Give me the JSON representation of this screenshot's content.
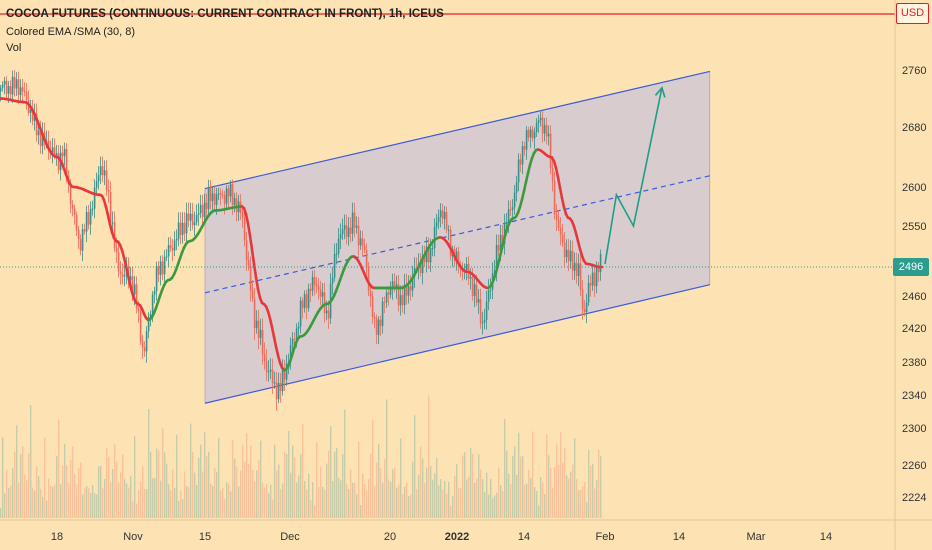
{
  "header": {
    "title": "COCOA FUTURES (CONTINUOUS: CURRENT CONTRACT IN FRONT), 1h, ICEUS",
    "indicator": "Colored EMA /SMA (30, 8)",
    "volume": "Vol"
  },
  "currency_button": "USD",
  "last_price_label": "2496",
  "colors": {
    "background": "#fde3b4",
    "candle_up": "#3a8f8a",
    "candle_down": "#ee6a5a",
    "ema_up": "#3c9a3e",
    "ema_down": "#e8373a",
    "channel_line": "#3b5bdb",
    "channel_fill": "#c8c2d8",
    "forecast_arrow": "#1f9e86",
    "alert_line": "#e02020",
    "price_badge": "#2a9d8f"
  },
  "chart_data": {
    "type": "candlestick",
    "interval": "1h",
    "grid": false,
    "x_tick_labels": [
      "18",
      "Nov",
      "15",
      "Dec",
      "20",
      "2022",
      "14",
      "Feb",
      "14",
      "Mar",
      "14"
    ],
    "y_tick_labels": [
      "2760",
      "2680",
      "2600",
      "2550",
      "2496",
      "2460",
      "2420",
      "2380",
      "2340",
      "2300",
      "2260",
      "2224"
    ],
    "last_price": 2496,
    "price_path": [
      {
        "t": "Oct 11",
        "close": 2730
      },
      {
        "t": "Oct 13",
        "close": 2745
      },
      {
        "t": "Oct 15",
        "close": 2690
      },
      {
        "t": "Oct 18",
        "close": 2630
      },
      {
        "t": "Oct 19",
        "close": 2655
      },
      {
        "t": "Oct 21",
        "close": 2560
      },
      {
        "t": "Oct 22",
        "close": 2520
      },
      {
        "t": "Oct 25",
        "close": 2600
      },
      {
        "t": "Oct 26",
        "close": 2630
      },
      {
        "t": "Oct 28",
        "close": 2560
      },
      {
        "t": "Oct 29",
        "close": 2500
      },
      {
        "t": "Nov 1",
        "close": 2470
      },
      {
        "t": "Nov 2",
        "close": 2430
      },
      {
        "t": "Nov 3",
        "close": 2395
      },
      {
        "t": "Nov 5",
        "close": 2470
      },
      {
        "t": "Nov 8",
        "close": 2525
      },
      {
        "t": "Nov 10",
        "close": 2540
      },
      {
        "t": "Nov 12",
        "close": 2560
      },
      {
        "t": "Nov 15",
        "close": 2575
      },
      {
        "t": "Nov 17",
        "close": 2590
      },
      {
        "t": "Nov 19",
        "close": 2595
      },
      {
        "t": "Nov 22",
        "close": 2560
      },
      {
        "t": "Nov 24",
        "close": 2440
      },
      {
        "t": "Nov 26",
        "close": 2380
      },
      {
        "t": "Nov 29",
        "close": 2345
      },
      {
        "t": "Dec 1",
        "close": 2390
      },
      {
        "t": "Dec 3",
        "close": 2450
      },
      {
        "t": "Dec 6",
        "close": 2475
      },
      {
        "t": "Dec 8",
        "close": 2440
      },
      {
        "t": "Dec 10",
        "close": 2530
      },
      {
        "t": "Dec 13",
        "close": 2560
      },
      {
        "t": "Dec 15",
        "close": 2510
      },
      {
        "t": "Dec 17",
        "close": 2420
      },
      {
        "t": "Dec 20",
        "close": 2470
      },
      {
        "t": "Dec 22",
        "close": 2460
      },
      {
        "t": "Dec 24",
        "close": 2480
      },
      {
        "t": "Dec 27",
        "close": 2520
      },
      {
        "t": "Dec 29",
        "close": 2570
      },
      {
        "t": "Dec 31",
        "close": 2520
      },
      {
        "t": "Jan 4",
        "close": 2470
      },
      {
        "t": "Jan 6",
        "close": 2430
      },
      {
        "t": "Jan 10",
        "close": 2550
      },
      {
        "t": "Jan 12",
        "close": 2590
      },
      {
        "t": "Jan 14",
        "close": 2660
      },
      {
        "t": "Jan 17",
        "close": 2690
      },
      {
        "t": "Jan 19",
        "close": 2670
      },
      {
        "t": "Jan 21",
        "close": 2560
      },
      {
        "t": "Jan 24",
        "close": 2500
      },
      {
        "t": "Jan 26",
        "close": 2490
      },
      {
        "t": "Jan 27",
        "close": 2440
      },
      {
        "t": "Jan 28",
        "close": 2470
      },
      {
        "t": "Jan 31",
        "close": 2496
      }
    ],
    "ema_path": [
      {
        "t": "Oct 11",
        "value": 2720
      },
      {
        "t": "Oct 14",
        "value": 2715
      },
      {
        "t": "Oct 18",
        "value": 2640
      },
      {
        "t": "Oct 21",
        "value": 2600
      },
      {
        "t": "Oct 26",
        "value": 2590
      },
      {
        "t": "Oct 29",
        "value": 2530
      },
      {
        "t": "Nov 2",
        "value": 2450
      },
      {
        "t": "Nov 4",
        "value": 2430
      },
      {
        "t": "Nov 8",
        "value": 2480
      },
      {
        "t": "Nov 12",
        "value": 2530
      },
      {
        "t": "Nov 17",
        "value": 2570
      },
      {
        "t": "Nov 22",
        "value": 2575
      },
      {
        "t": "Nov 26",
        "value": 2450
      },
      {
        "t": "Nov 30",
        "value": 2370
      },
      {
        "t": "Dec 3",
        "value": 2410
      },
      {
        "t": "Dec 8",
        "value": 2450
      },
      {
        "t": "Dec 13",
        "value": 2510
      },
      {
        "t": "Dec 17",
        "value": 2470
      },
      {
        "t": "Dec 22",
        "value": 2470
      },
      {
        "t": "Dec 29",
        "value": 2535
      },
      {
        "t": "Jan 3",
        "value": 2490
      },
      {
        "t": "Jan 7",
        "value": 2470
      },
      {
        "t": "Jan 12",
        "value": 2560
      },
      {
        "t": "Jan 17",
        "value": 2650
      },
      {
        "t": "Jan 20",
        "value": 2640
      },
      {
        "t": "Jan 24",
        "value": 2560
      },
      {
        "t": "Jan 28",
        "value": 2500
      },
      {
        "t": "Jan 31",
        "value": 2496
      }
    ],
    "channel": {
      "upper": {
        "from": {
          "t": "Nov 15",
          "value": 2598
        },
        "to": {
          "t": "Feb 20",
          "value": 2758
        }
      },
      "mid": {
        "from": {
          "t": "Nov 15",
          "value": 2464
        },
        "to": {
          "t": "Feb 20",
          "value": 2615
        }
      },
      "lower": {
        "from": {
          "t": "Nov 15",
          "value": 2330
        },
        "to": {
          "t": "Feb 20",
          "value": 2474
        }
      }
    },
    "forecast_path": [
      {
        "t": "Feb 1",
        "value": 2500
      },
      {
        "t": "Feb 3",
        "value": 2590
      },
      {
        "t": "Feb 6",
        "value": 2550
      },
      {
        "t": "Feb 11",
        "value": 2735
      }
    ],
    "volume_scale": "relative"
  }
}
